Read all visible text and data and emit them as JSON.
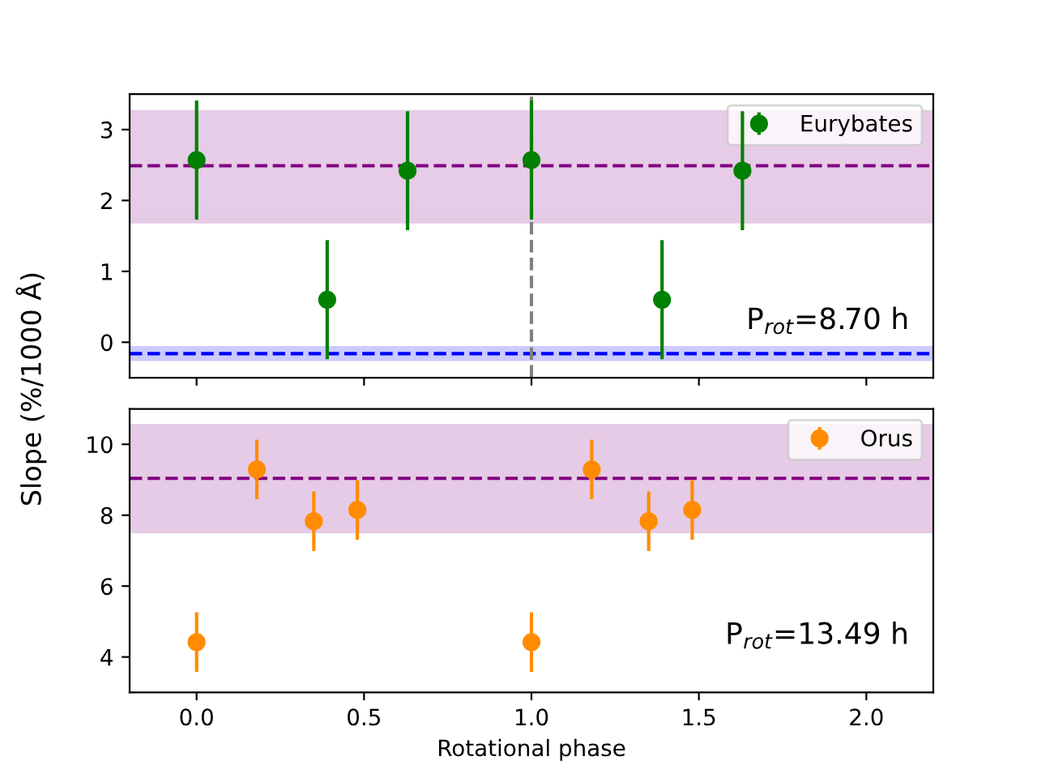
{
  "chart_data": [
    {
      "type": "scatter",
      "ylabel": "Slope (%/1000 Å)",
      "x": [
        0.0,
        0.39,
        0.63,
        1.0,
        1.39,
        1.63
      ],
      "series": [
        {
          "name": "Eurybates",
          "color": "#008000",
          "values": [
            2.57,
            0.6,
            2.42,
            2.57,
            0.6,
            2.42
          ],
          "errors": [
            0.84,
            0.84,
            0.84,
            0.84,
            0.84,
            0.84
          ]
        }
      ],
      "xlim": [
        -0.2,
        2.2
      ],
      "xticks": [
        0.0,
        0.5,
        1.0,
        1.5,
        2.0
      ],
      "ylim": [
        -0.5,
        3.5
      ],
      "yticks": [
        0,
        1,
        2,
        3
      ],
      "tick_labels": "y",
      "marker": "circle",
      "legend": "top right",
      "grid": false,
      "bands": [
        {
          "axis": "y",
          "from": 1.69,
          "to": 3.26,
          "color": "#800080"
        },
        {
          "axis": "y",
          "from": -0.25,
          "to": -0.07,
          "color": "#0000ff"
        }
      ],
      "ref_lines": [
        {
          "axis": "y",
          "value": 2.49,
          "color": "#800080",
          "line_style": "dashed"
        },
        {
          "axis": "y",
          "value": -0.16,
          "color": "#0000ff",
          "line_style": "dashed"
        },
        {
          "axis": "x",
          "value": 1.0,
          "color": "#808080",
          "line_style": "dashed"
        }
      ],
      "annotations": [
        "P$_{rot}$=8.70 h"
      ]
    },
    {
      "type": "scatter",
      "xlabel": "Rotational phase",
      "x": [
        0.0,
        0.18,
        0.35,
        0.48,
        1.0,
        1.18,
        1.35,
        1.48
      ],
      "series": [
        {
          "name": "Orus",
          "color": "#ff8c00",
          "values": [
            4.42,
            9.29,
            7.83,
            8.15,
            4.42,
            9.29,
            7.83,
            8.15
          ],
          "errors": [
            0.84,
            0.84,
            0.84,
            0.84,
            0.84,
            0.84,
            0.84,
            0.84
          ]
        }
      ],
      "xlim": [
        -0.2,
        2.2
      ],
      "xticks": [
        {
          "value": 0.0,
          "label": "0.0"
        },
        {
          "value": 0.5,
          "label": "0.5"
        },
        {
          "value": 1.0,
          "label": "1.0"
        },
        {
          "value": 1.5,
          "label": "1.5"
        },
        {
          "value": 2.0,
          "label": "2.0"
        }
      ],
      "ylim": [
        3,
        11
      ],
      "yticks": [
        4,
        6,
        8,
        10
      ],
      "marker": "circle",
      "legend": "top right",
      "grid": false,
      "bands": [
        {
          "axis": "y",
          "from": 7.52,
          "to": 10.54,
          "color": "#800080"
        }
      ],
      "ref_lines": [
        {
          "axis": "y",
          "value": 9.04,
          "color": "#800080",
          "line_style": "dashed"
        }
      ],
      "annotations": [
        "P$_{rot}$=13.49 h"
      ]
    }
  ]
}
